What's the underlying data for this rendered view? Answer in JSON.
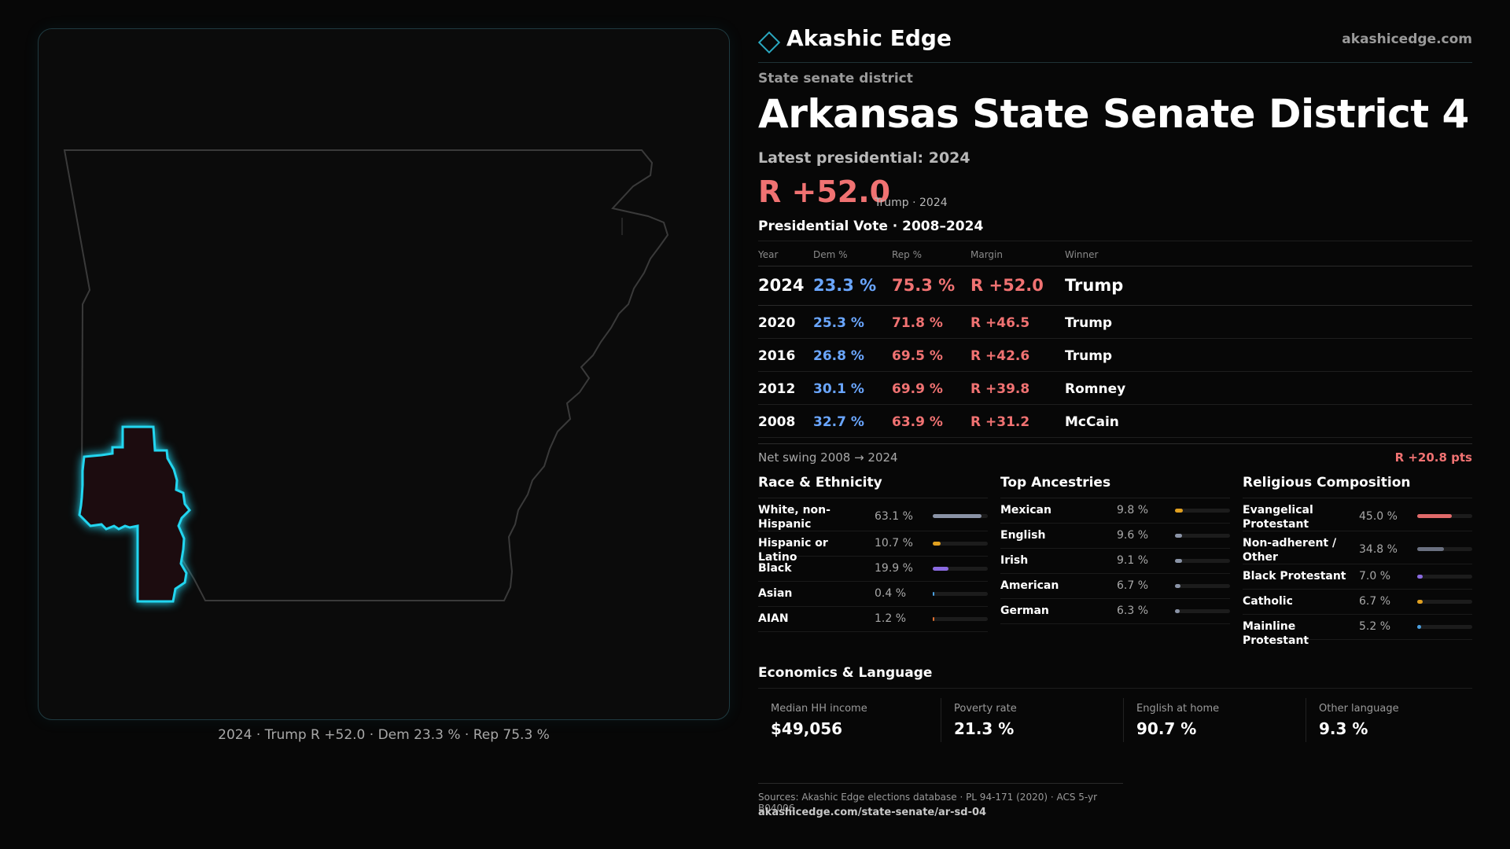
{
  "map_caption": "2024 · Trump R +52.0 · Dem 23.3 % · Rep 75.3 %",
  "brand": {
    "name": "Akashic Edge",
    "url": "akashicedge.com",
    "accent": "#2aa8c0"
  },
  "district": {
    "type": "State senate district",
    "title": "Arkansas State Senate District 4",
    "latest_label": "Latest presidential: 2024",
    "margin": "R +52.0",
    "margin_sub": "Trump · 2024"
  },
  "vote_history": {
    "title": "Presidential Vote · 2008–2024",
    "headers": {
      "year": "Year",
      "dem": "Dem %",
      "rep": "Rep %",
      "margin": "Margin",
      "winner": "Winner"
    },
    "rows": [
      {
        "year": "2024",
        "dem": "23.3 %",
        "rep": "75.3 %",
        "margin": "R +52.0",
        "winner": "Trump"
      },
      {
        "year": "2020",
        "dem": "25.3 %",
        "rep": "71.8 %",
        "margin": "R +46.5",
        "winner": "Trump"
      },
      {
        "year": "2016",
        "dem": "26.8 %",
        "rep": "69.5 %",
        "margin": "R +42.6",
        "winner": "Trump"
      },
      {
        "year": "2012",
        "dem": "30.1 %",
        "rep": "69.9 %",
        "margin": "R +39.8",
        "winner": "Romney"
      },
      {
        "year": "2008",
        "dem": "32.7 %",
        "rep": "63.9 %",
        "margin": "R +31.2",
        "winner": "McCain"
      }
    ]
  },
  "swing": {
    "label": "Net swing 2008 → 2024",
    "value": "R +20.8 pts"
  },
  "race": {
    "title": "Race & Ethnicity",
    "items": [
      {
        "label": "White, non-Hispanic",
        "pct": "63.1 %",
        "value": 0.631,
        "color": "#8a93a6"
      },
      {
        "label": "Hispanic or Latino",
        "pct": "10.7 %",
        "value": 0.107,
        "color": "#e0a020"
      },
      {
        "label": "Black",
        "pct": "19.9 %",
        "value": 0.199,
        "color": "#8a6ae0"
      },
      {
        "label": "Asian",
        "pct": "0.4 %",
        "value": 0.004,
        "color": "#4aa0e0"
      },
      {
        "label": "AIAN",
        "pct": "1.2 %",
        "value": 0.012,
        "color": "#e07030"
      }
    ]
  },
  "ancestry": {
    "title": "Top Ancestries",
    "items": [
      {
        "label": "Mexican",
        "pct": "9.8 %",
        "value": 0.098,
        "color": "#e0a020"
      },
      {
        "label": "English",
        "pct": "9.6 %",
        "value": 0.096,
        "color": "#8a93a6"
      },
      {
        "label": "Irish",
        "pct": "9.1 %",
        "value": 0.091,
        "color": "#8a93a6"
      },
      {
        "label": "American",
        "pct": "6.7 %",
        "value": 0.067,
        "color": "#8a93a6"
      },
      {
        "label": "German",
        "pct": "6.3 %",
        "value": 0.063,
        "color": "#8a93a6"
      }
    ]
  },
  "religion": {
    "title": "Religious Composition",
    "items": [
      {
        "label": "Evangelical Protestant",
        "pct": "45.0 %",
        "value": 0.45,
        "color": "#e06a6a"
      },
      {
        "label": "Non-adherent / Other",
        "pct": "34.8 %",
        "value": 0.348,
        "color": "#6a7080"
      },
      {
        "label": "Black Protestant",
        "pct": "7.0 %",
        "value": 0.07,
        "color": "#8a6ae0"
      },
      {
        "label": "Catholic",
        "pct": "6.7 %",
        "value": 0.067,
        "color": "#e0a020"
      },
      {
        "label": "Mainline Protestant",
        "pct": "5.2 %",
        "value": 0.052,
        "color": "#4aa0e0"
      }
    ]
  },
  "economics": {
    "title": "Economics & Language",
    "items": [
      {
        "label": "Median HH income",
        "value": "$49,056"
      },
      {
        "label": "Poverty rate",
        "value": "21.3 %"
      },
      {
        "label": "English at home",
        "value": "90.7 %"
      },
      {
        "label": "Other language",
        "value": "9.3 %"
      }
    ]
  },
  "sources": {
    "text": "Sources: Akashic Edge elections database · PL 94-171 (2020) · ACS 5-yr B04006",
    "url": "akashicedge.com/state-senate/ar-sd-04"
  }
}
